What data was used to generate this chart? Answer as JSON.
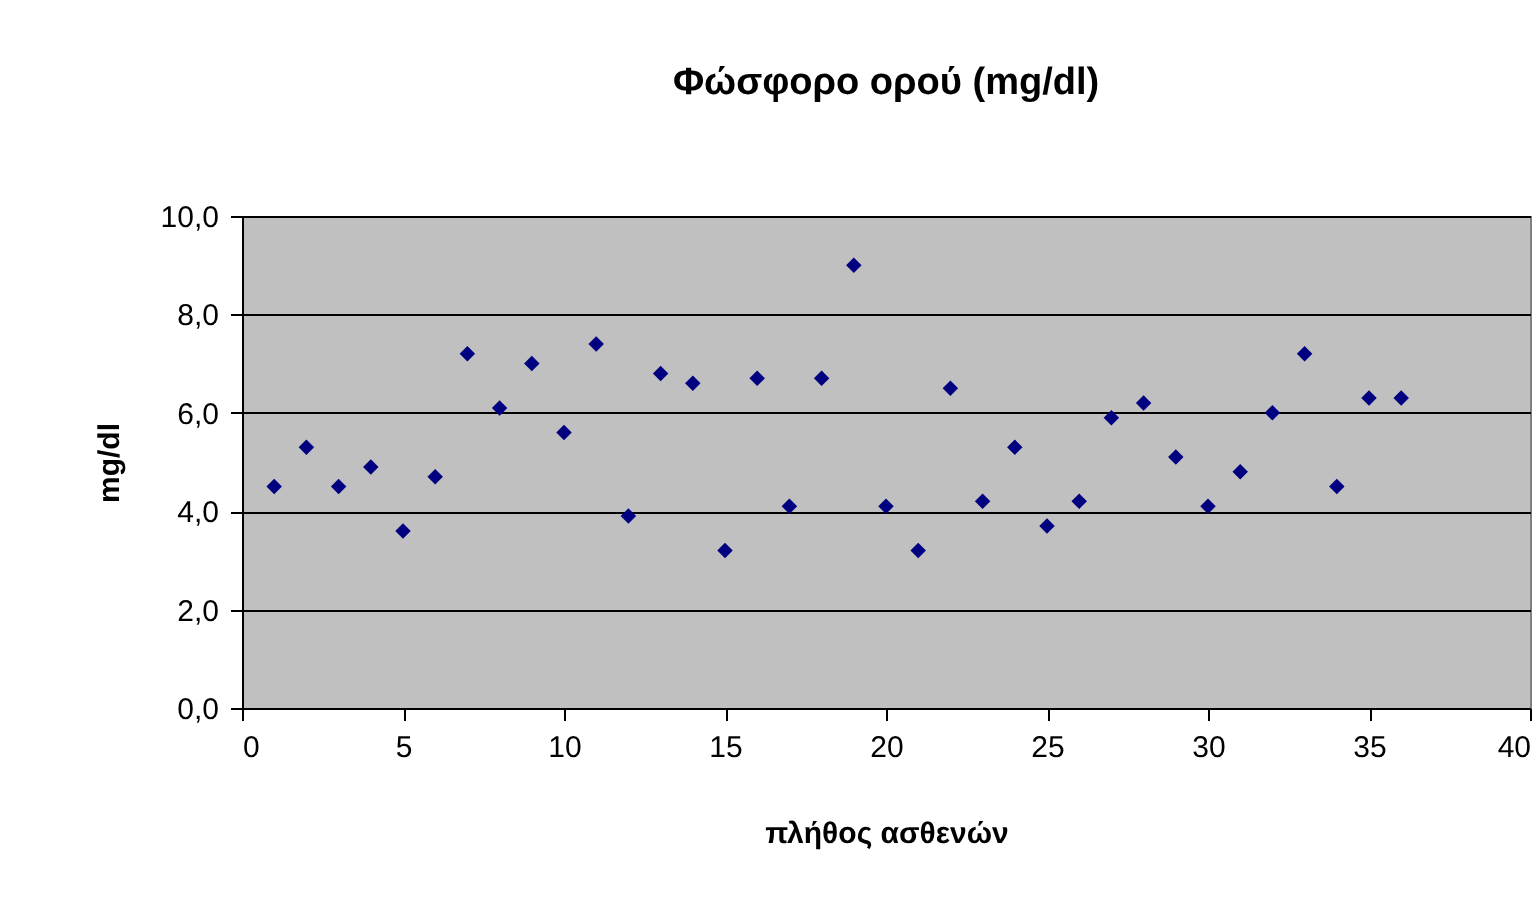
{
  "chart_data": {
    "type": "scatter",
    "title": "Φώσφορο ορού (mg/dl)",
    "xlabel": "πλήθος ασθενών",
    "ylabel": "mg/dl",
    "x": [
      1,
      2,
      3,
      4,
      5,
      6,
      7,
      8,
      9,
      10,
      11,
      12,
      13,
      14,
      15,
      16,
      17,
      18,
      19,
      20,
      21,
      22,
      23,
      24,
      25,
      26,
      27,
      28,
      29,
      30,
      31,
      32,
      33,
      34,
      35,
      36
    ],
    "series": [
      {
        "color": "#000080",
        "values": [
          4.5,
          5.3,
          4.5,
          4.9,
          3.6,
          4.7,
          7.2,
          6.1,
          7.0,
          5.6,
          7.4,
          3.9,
          6.8,
          6.6,
          3.2,
          6.7,
          4.1,
          6.7,
          9.0,
          4.1,
          3.2,
          6.5,
          4.2,
          5.3,
          3.7,
          4.2,
          5.9,
          6.2,
          5.1,
          4.1,
          4.8,
          6.0,
          7.2,
          4.5,
          6.3,
          6.3
        ]
      }
    ],
    "xlim": [
      0,
      40
    ],
    "xticks": [
      0,
      5,
      10,
      15,
      20,
      25,
      30,
      35,
      40
    ],
    "ylim": [
      0,
      10
    ],
    "yticks": [
      {
        "value": 0,
        "label": "0,0"
      },
      {
        "value": 2,
        "label": "2,0"
      },
      {
        "value": 4,
        "label": "4,0"
      },
      {
        "value": 6,
        "label": "6,0"
      },
      {
        "value": 8,
        "label": "8,0"
      },
      {
        "value": 10,
        "label": "10,0"
      }
    ],
    "grid": "y",
    "marker": "diamond"
  }
}
